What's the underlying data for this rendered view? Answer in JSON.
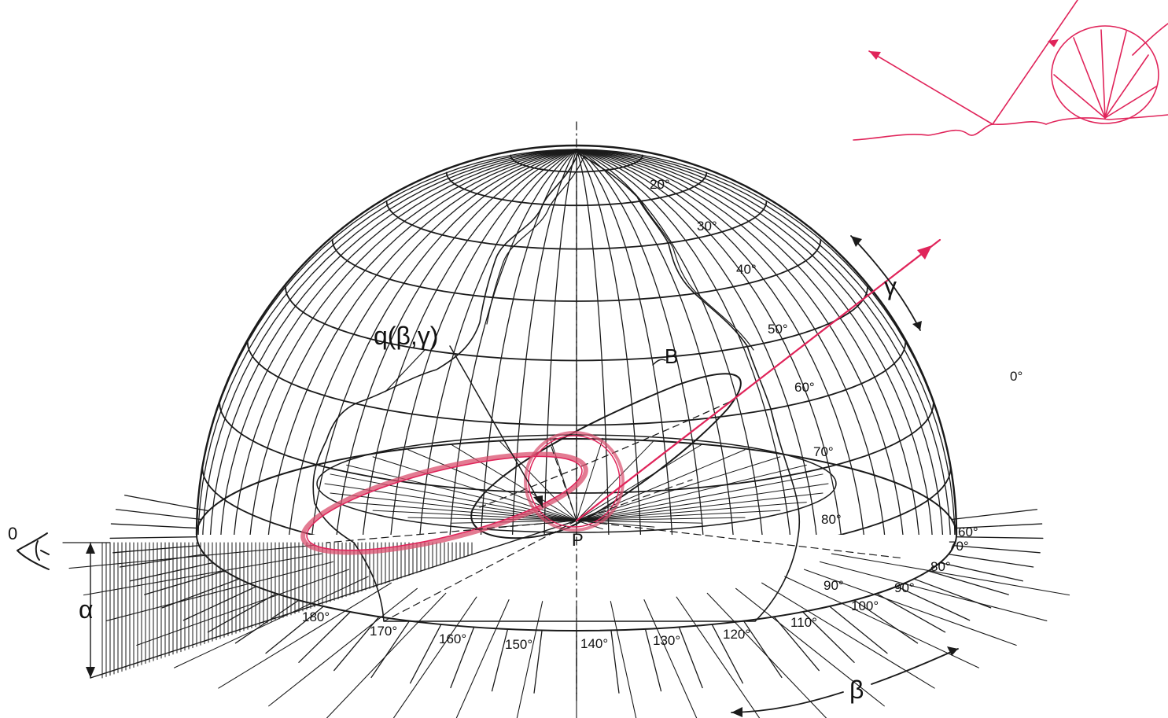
{
  "colors": {
    "ink": "#1a1a1a",
    "red_ink": "#e0245a",
    "highlight": "#d94f6e",
    "paper": "#ffffff"
  },
  "labels": {
    "q_function": "q(β,γ)",
    "B_top": "B",
    "B_bottom": "β",
    "gamma": "γ",
    "alpha": "α",
    "point": "P",
    "eye": "0"
  },
  "elevation_labels": [
    "20°",
    "30°",
    "40°",
    "50°",
    "60°",
    "70°",
    "80°",
    "90°"
  ],
  "azimuth_labels": [
    "0°",
    "60°",
    "70°",
    "80°",
    "90°",
    "100°",
    "110°",
    "120°",
    "130°",
    "140°",
    "150°",
    "160°",
    "170°",
    "180°"
  ],
  "inset": {
    "icon": "reflection-sketch-icon"
  }
}
